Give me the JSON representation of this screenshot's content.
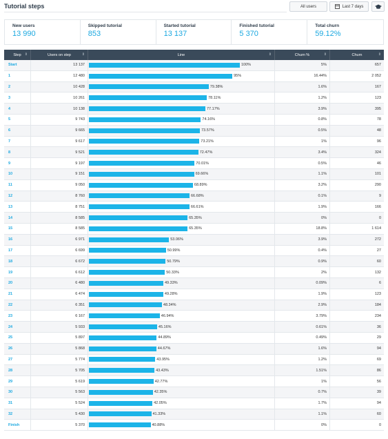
{
  "header": {
    "title": "Tutorial steps",
    "all_users": "All users",
    "last_days": "Last 7 days"
  },
  "stats": [
    {
      "label": "New users",
      "value": "13 990"
    },
    {
      "label": "Skipped tutorial",
      "value": "853"
    },
    {
      "label": "Started tutorial",
      "value": "13 137"
    },
    {
      "label": "Finished tutorial",
      "value": "5 370"
    },
    {
      "label": "Total churn",
      "value": "59.12%"
    }
  ],
  "columns": [
    "Step",
    "Users on step",
    "Line",
    "Churn %",
    "Churn"
  ],
  "rows": [
    {
      "step": "Start",
      "users": "13 137",
      "line_pct": 100,
      "line_label": "100%",
      "churn_pct": "5%",
      "churn": "657"
    },
    {
      "step": "1",
      "users": "12 480",
      "line_pct": 95,
      "line_label": "95%",
      "churn_pct": "16.44%",
      "churn": "2 052"
    },
    {
      "step": "2",
      "users": "10 428",
      "line_pct": 79.38,
      "line_label": "79.38%",
      "churn_pct": "1.6%",
      "churn": "167"
    },
    {
      "step": "3",
      "users": "10 261",
      "line_pct": 78.11,
      "line_label": "78.11%",
      "churn_pct": "1.2%",
      "churn": "123"
    },
    {
      "step": "4",
      "users": "10 138",
      "line_pct": 77.17,
      "line_label": "77.17%",
      "churn_pct": "3.9%",
      "churn": "395"
    },
    {
      "step": "5",
      "users": "9 743",
      "line_pct": 74.16,
      "line_label": "74.16%",
      "churn_pct": "0.8%",
      "churn": "78"
    },
    {
      "step": "6",
      "users": "9 665",
      "line_pct": 73.57,
      "line_label": "73.57%",
      "churn_pct": "0.5%",
      "churn": "48"
    },
    {
      "step": "7",
      "users": "9 617",
      "line_pct": 73.21,
      "line_label": "73.21%",
      "churn_pct": "1%",
      "churn": "96"
    },
    {
      "step": "8",
      "users": "9 521",
      "line_pct": 72.47,
      "line_label": "72.47%",
      "churn_pct": "3.4%",
      "churn": "324"
    },
    {
      "step": "9",
      "users": "9 197",
      "line_pct": 70.01,
      "line_label": "70.01%",
      "churn_pct": "0.5%",
      "churn": "46"
    },
    {
      "step": "10",
      "users": "9 151",
      "line_pct": 69.66,
      "line_label": "69.66%",
      "churn_pct": "1.1%",
      "churn": "101"
    },
    {
      "step": "11",
      "users": "9 050",
      "line_pct": 68.89,
      "line_label": "68.89%",
      "churn_pct": "3.2%",
      "churn": "290"
    },
    {
      "step": "12",
      "users": "8 760",
      "line_pct": 66.68,
      "line_label": "66.68%",
      "churn_pct": "0.1%",
      "churn": "9"
    },
    {
      "step": "13",
      "users": "8 751",
      "line_pct": 66.61,
      "line_label": "66.61%",
      "churn_pct": "1.9%",
      "churn": "166"
    },
    {
      "step": "14",
      "users": "8 585",
      "line_pct": 65.35,
      "line_label": "65.35%",
      "churn_pct": "0%",
      "churn": "0"
    },
    {
      "step": "15",
      "users": "8 585",
      "line_pct": 65.35,
      "line_label": "65.35%",
      "churn_pct": "18.8%",
      "churn": "1 614"
    },
    {
      "step": "16",
      "users": "6 971",
      "line_pct": 53.06,
      "line_label": "53.06%",
      "churn_pct": "3.9%",
      "churn": "272"
    },
    {
      "step": "17",
      "users": "6 699",
      "line_pct": 50.99,
      "line_label": "50.99%",
      "churn_pct": "0.4%",
      "churn": "27"
    },
    {
      "step": "18",
      "users": "6 672",
      "line_pct": 50.79,
      "line_label": "50.79%",
      "churn_pct": "0.9%",
      "churn": "60"
    },
    {
      "step": "19",
      "users": "6 612",
      "line_pct": 50.33,
      "line_label": "50.33%",
      "churn_pct": "2%",
      "churn": "132"
    },
    {
      "step": "20",
      "users": "6 480",
      "line_pct": 49.33,
      "line_label": "49.33%",
      "churn_pct": "0.09%",
      "churn": "6"
    },
    {
      "step": "21",
      "users": "6 474",
      "line_pct": 49.28,
      "line_label": "49.28%",
      "churn_pct": "1.9%",
      "churn": "123"
    },
    {
      "step": "22",
      "users": "6 351",
      "line_pct": 48.34,
      "line_label": "48.34%",
      "churn_pct": "2.9%",
      "churn": "184"
    },
    {
      "step": "23",
      "users": "6 167",
      "line_pct": 46.94,
      "line_label": "46.94%",
      "churn_pct": "3.79%",
      "churn": "234"
    },
    {
      "step": "24",
      "users": "5 933",
      "line_pct": 45.16,
      "line_label": "45.16%",
      "churn_pct": "0.61%",
      "churn": "36"
    },
    {
      "step": "25",
      "users": "5 897",
      "line_pct": 44.89,
      "line_label": "44.89%",
      "churn_pct": "0.49%",
      "churn": "29"
    },
    {
      "step": "26",
      "users": "5 868",
      "line_pct": 44.67,
      "line_label": "44.67%",
      "churn_pct": "1.6%",
      "churn": "94"
    },
    {
      "step": "27",
      "users": "5 774",
      "line_pct": 43.95,
      "line_label": "43.95%",
      "churn_pct": "1.2%",
      "churn": "69"
    },
    {
      "step": "28",
      "users": "5 705",
      "line_pct": 43.43,
      "line_label": "43.43%",
      "churn_pct": "1.51%",
      "churn": "86"
    },
    {
      "step": "29",
      "users": "5 619",
      "line_pct": 42.77,
      "line_label": "42.77%",
      "churn_pct": "1%",
      "churn": "56"
    },
    {
      "step": "30",
      "users": "5 563",
      "line_pct": 42.35,
      "line_label": "42.35%",
      "churn_pct": "0.7%",
      "churn": "39"
    },
    {
      "step": "31",
      "users": "5 524",
      "line_pct": 42.05,
      "line_label": "42.05%",
      "churn_pct": "1.7%",
      "churn": "94"
    },
    {
      "step": "32",
      "users": "5 430",
      "line_pct": 41.33,
      "line_label": "41.33%",
      "churn_pct": "1.1%",
      "churn": "60"
    },
    {
      "step": "Finish",
      "users": "5 370",
      "line_pct": 40.88,
      "line_label": "40.88%",
      "churn_pct": "0%",
      "churn": "0"
    }
  ],
  "colors": {
    "accent": "#1ba8e0",
    "bar": "#1cb4e8",
    "header_bg": "#3a4a5a"
  },
  "icons": {
    "calendar": "calendar-icon",
    "graduation_cap": "graduation-cap-icon",
    "sort": "sort-icon"
  }
}
